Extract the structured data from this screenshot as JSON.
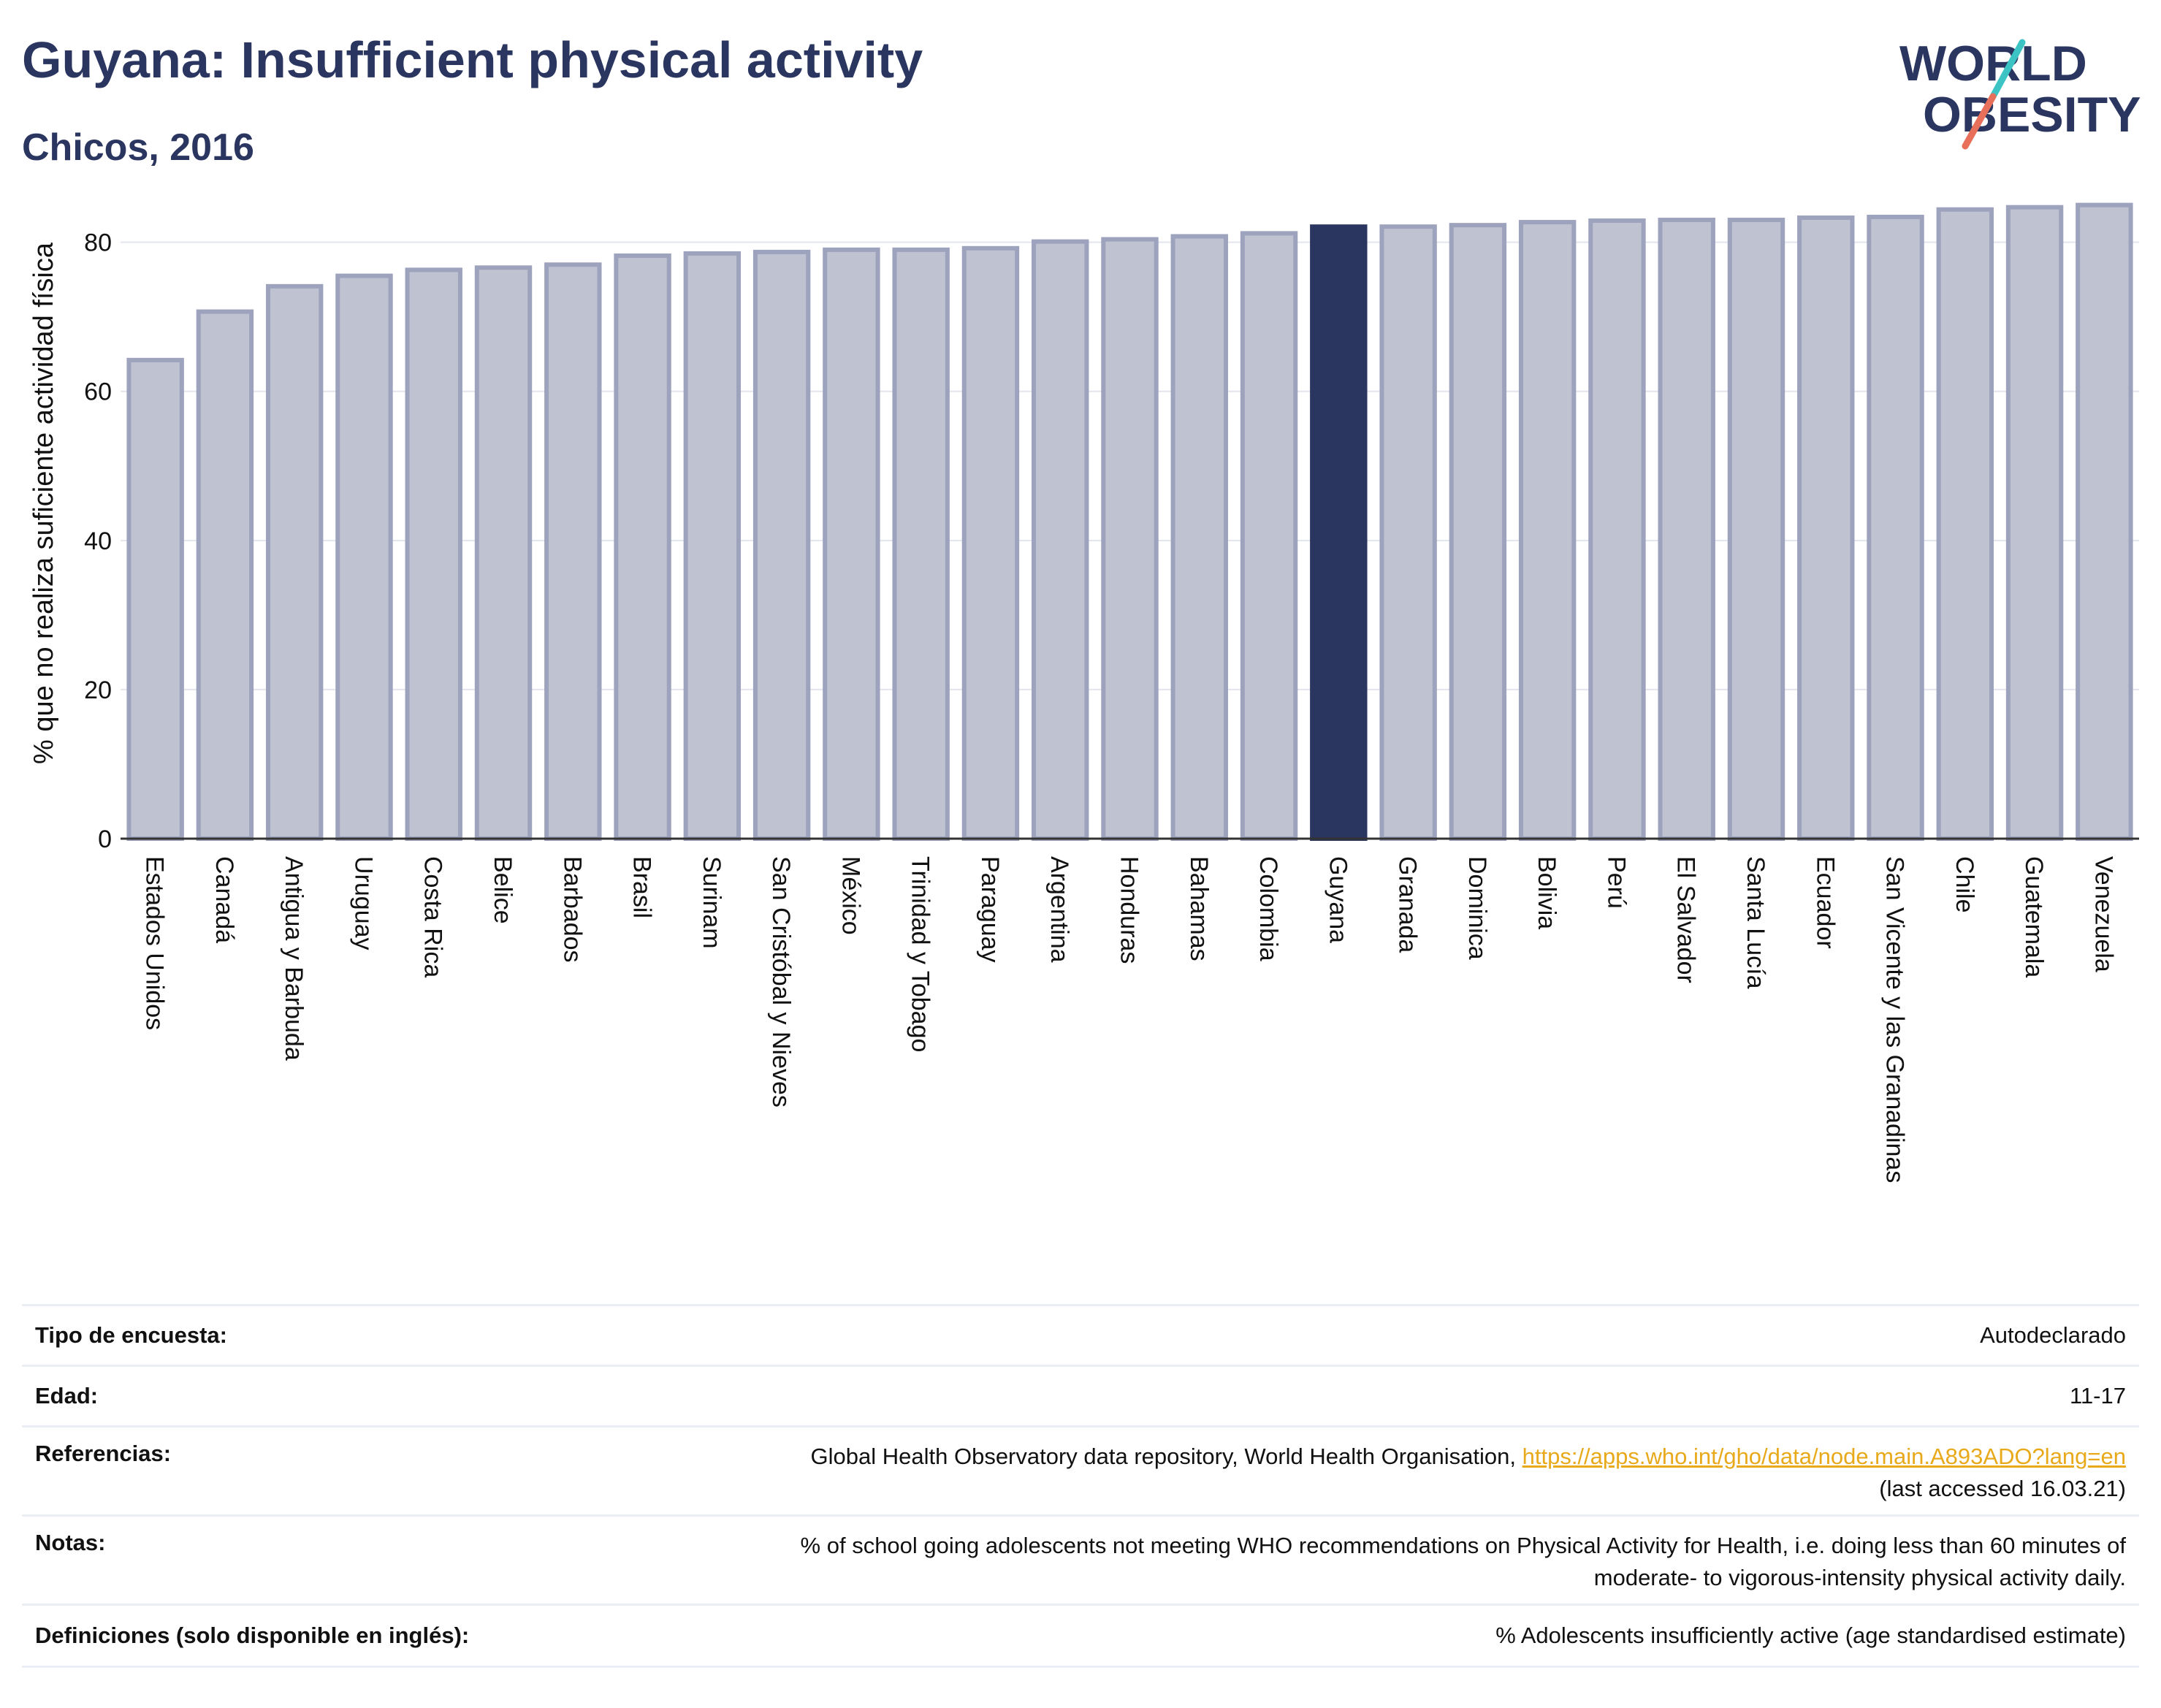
{
  "header": {
    "title": "Guyana: Insufficient physical activity",
    "subtitle": "Chicos, 2016"
  },
  "logo": {
    "line1": "WORLD",
    "line2": "OBESITY",
    "text_color": "#2a3560",
    "slash_colors": [
      "#3cc4c4",
      "#e8705a"
    ]
  },
  "chart_data": {
    "type": "bar",
    "title": "Guyana: Insufficient physical activity",
    "subtitle": "Chicos, 2016",
    "xlabel": "",
    "ylabel": "% que no realiza suficiente actividad física",
    "ylim": [
      0,
      88
    ],
    "yticks": [
      0,
      20,
      40,
      60,
      80
    ],
    "grid": true,
    "highlight": "Guyana",
    "colors": {
      "bar": "#bfc2d0",
      "bar_edge": "#9da2bd",
      "highlight": "#2a3560"
    },
    "categories": [
      "Estados Unidos",
      "Canadá",
      "Antigua y Barbuda",
      "Uruguay",
      "Costa Rica",
      "Belice",
      "Barbados",
      "Brasil",
      "Surinam",
      "San Cristóbal y Nieves",
      "México",
      "Trinidad y Tobago",
      "Paraguay",
      "Argentina",
      "Honduras",
      "Bahamas",
      "Colombia",
      "Guyana",
      "Granada",
      "Dominica",
      "Bolivia",
      "Perú",
      "El Salvador",
      "Santa Lucía",
      "Ecuador",
      "San Vicente y las Granadinas",
      "Chile",
      "Guatemala",
      "Venezuela"
    ],
    "values": [
      64.2,
      70.7,
      74.1,
      75.5,
      76.3,
      76.6,
      77.0,
      78.2,
      78.5,
      78.7,
      79.0,
      79.0,
      79.2,
      80.1,
      80.4,
      80.8,
      81.2,
      82.1,
      82.1,
      82.3,
      82.7,
      82.9,
      83.0,
      83.0,
      83.3,
      83.4,
      84.4,
      84.7,
      85.0
    ]
  },
  "meta": {
    "survey_label": "Tipo de encuesta:",
    "survey_value": "Autodeclarado",
    "age_label": "Edad:",
    "age_value": "11-17",
    "refs_label": "Referencias:",
    "refs_text": "Global Health Observatory data repository, World Health Organisation, ",
    "refs_link": "https://apps.who.int/gho/data/node.main.A893ADO?lang=en",
    "refs_access": "(last accessed 16.03.21)",
    "notes_label": "Notas:",
    "notes_line1": "% of school going adolescents not meeting WHO recommendations on Physical Activity for Health, i.e. doing less than 60 minutes of",
    "notes_line2": "moderate- to vigorous-intensity physical activity daily.",
    "defs_label": "Definiciones (solo disponible en inglés):",
    "defs_value": "% Adolescents insufficiently active (age standardised estimate)"
  }
}
